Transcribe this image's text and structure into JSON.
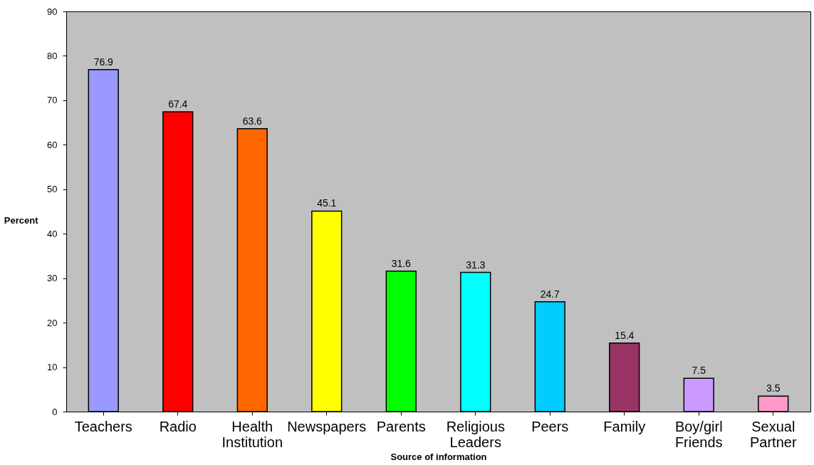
{
  "chart_data": {
    "type": "bar",
    "xlabel": "Source of information",
    "ylabel": "Percent",
    "categories": [
      "Teachers",
      "Radio",
      "Health Institution",
      "Newspapers",
      "Parents",
      "Religious Leaders",
      "Peers",
      "Family",
      "Boy/girl Friends",
      "Sexual Partner"
    ],
    "values": [
      76.9,
      67.4,
      63.6,
      45.1,
      31.6,
      31.3,
      24.7,
      15.4,
      7.5,
      3.5
    ],
    "colors": [
      "#9999ff",
      "#ff0000",
      "#ff6600",
      "#ffff00",
      "#00ff00",
      "#00ffff",
      "#00ccff",
      "#993366",
      "#cc99ff",
      "#ff99cc"
    ],
    "ylim": [
      0,
      90
    ],
    "yticks": [
      0,
      10,
      20,
      30,
      40,
      50,
      60,
      70,
      80,
      90
    ],
    "data_labels": true,
    "grid": false
  }
}
